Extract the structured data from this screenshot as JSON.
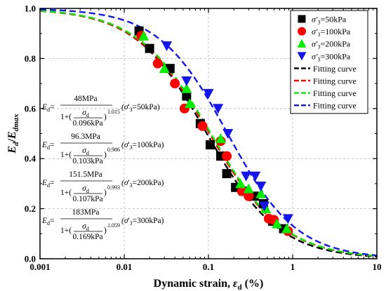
{
  "chart_data": {
    "type": "scatter",
    "xlabel_main": "Dynamic strain, ",
    "xlabel_symbol": "ε",
    "xlabel_symbol_sub": "d",
    "xlabel_unit": " (%)",
    "ylabel_E": "E",
    "ylabel_E_sub": "d",
    "ylabel_slash": "/",
    "ylabel_E2": "E",
    "ylabel_E2_sub": "dmax",
    "x_scale": "log",
    "xlim": [
      0.001,
      10
    ],
    "ylim": [
      0.0,
      1.0
    ],
    "x_ticks": [
      0.001,
      0.01,
      0.1,
      1,
      10
    ],
    "x_tick_labels": [
      "0.001",
      "0.01",
      "0.1",
      "1",
      "10"
    ],
    "y_ticks": [
      0.0,
      0.2,
      0.4,
      0.6,
      0.8,
      1.0
    ],
    "y_tick_labels": [
      "0.0",
      "0.2",
      "0.4",
      "0.6",
      "0.8",
      "1.0"
    ],
    "grid": true,
    "legend_position": "top-right",
    "series": [
      {
        "name": "σ'3=50kPa",
        "name_sigma": "σ'",
        "name_sub": "3",
        "name_rest": "=50kPa",
        "marker": "square",
        "color": "#000000",
        "x": [
          0.015,
          0.02,
          0.035,
          0.055,
          0.08,
          0.105,
          0.14,
          0.165,
          0.21,
          0.26,
          0.35,
          0.45,
          0.58,
          0.78
        ],
        "y": [
          0.91,
          0.84,
          0.76,
          0.65,
          0.54,
          0.455,
          0.41,
          0.34,
          0.285,
          0.27,
          0.25,
          0.22,
          0.15,
          0.12
        ]
      },
      {
        "name": "σ'3=100kPa",
        "name_sigma": "σ'",
        "name_sub": "3",
        "name_rest": "=100kPa",
        "marker": "circle",
        "color": "#ff0000",
        "x": [
          0.016,
          0.025,
          0.04,
          0.052,
          0.085,
          0.14,
          0.165,
          0.25,
          0.3,
          0.52,
          0.6,
          0.88
        ],
        "y": [
          0.89,
          0.78,
          0.7,
          0.6,
          0.53,
          0.47,
          0.41,
          0.27,
          0.25,
          0.16,
          0.155,
          0.11
        ]
      },
      {
        "name": "σ'3=200kPa",
        "name_sigma": "σ'",
        "name_sub": "3",
        "name_rest": "=200kPa",
        "marker": "triangle-up",
        "color": "#00ee00",
        "x": [
          0.017,
          0.03,
          0.055,
          0.06,
          0.14,
          0.24,
          0.3,
          0.42,
          0.48,
          0.65,
          0.85
        ],
        "y": [
          0.89,
          0.76,
          0.68,
          0.62,
          0.48,
          0.3,
          0.28,
          0.26,
          0.2,
          0.14,
          0.12
        ]
      },
      {
        "name": "σ'3=300kPa",
        "name_sigma": "σ'",
        "name_sub": "3",
        "name_rest": "=300kPa",
        "marker": "triangle-down",
        "color": "#1515ee",
        "x": [
          0.032,
          0.055,
          0.1,
          0.13,
          0.17,
          0.28,
          0.36,
          0.42,
          0.46,
          0.88
        ],
        "y": [
          0.85,
          0.71,
          0.66,
          0.6,
          0.5,
          0.33,
          0.33,
          0.29,
          0.21,
          0.16
        ]
      }
    ],
    "fitting_curves": [
      {
        "name": "Fitting curve",
        "color": "#000000",
        "E_MPa": 48,
        "ref_kPa": 0.096,
        "exponent": 1.015
      },
      {
        "name": "Fitting curve",
        "color": "#ff0000",
        "E_MPa": 96.3,
        "ref_kPa": 0.103,
        "exponent": 0.986
      },
      {
        "name": "Fitting curve",
        "color": "#00ee00",
        "E_MPa": 151.5,
        "ref_kPa": 0.107,
        "exponent": 0.993
      },
      {
        "name": "Fitting curve",
        "color": "#1515ee",
        "E_MPa": 183,
        "ref_kPa": 0.169,
        "exponent": 1.059
      }
    ],
    "annotations": [
      {
        "lhs": "E",
        "lhs_sub": "d",
        "eq": "=",
        "numerator": "48MPa",
        "one_plus": "1+(",
        "frac_num": "σ",
        "frac_num_sub": "d",
        "frac_den": "0.096kPa",
        "close": ")",
        "exponent": "1.015",
        "condition_open": "(σ",
        "condition_prime": "'",
        "condition_sub": "3",
        "condition_rest": "=50kPa)"
      },
      {
        "lhs": "E",
        "lhs_sub": "d",
        "eq": "=",
        "numerator": "96.3MPa",
        "one_plus": "1+(",
        "frac_num": "σ",
        "frac_num_sub": "d",
        "frac_den": "0.103kPa",
        "close": ")",
        "exponent": "0.986",
        "condition_open": "(σ",
        "condition_prime": "'",
        "condition_sub": "3",
        "condition_rest": "=100kPa)"
      },
      {
        "lhs": "E",
        "lhs_sub": "d",
        "eq": "=",
        "numerator": "151.5MPa",
        "one_plus": "1+(",
        "frac_num": "σ",
        "frac_num_sub": "d",
        "frac_den": "0.107kPa",
        "close": ")",
        "exponent": "0.993",
        "condition_open": "(σ",
        "condition_prime": "'",
        "condition_sub": "3",
        "condition_rest": "=200kPa)"
      },
      {
        "lhs": "E",
        "lhs_sub": "d",
        "eq": "=",
        "numerator": "183MPa",
        "one_plus": "1+(",
        "frac_num": "σ",
        "frac_num_sub": "d",
        "frac_den": "0.169kPa",
        "close": ")",
        "exponent": "1.059",
        "condition_open": "(σ",
        "condition_prime": "'",
        "condition_sub": "3",
        "condition_rest": "=300kPa)"
      }
    ]
  }
}
